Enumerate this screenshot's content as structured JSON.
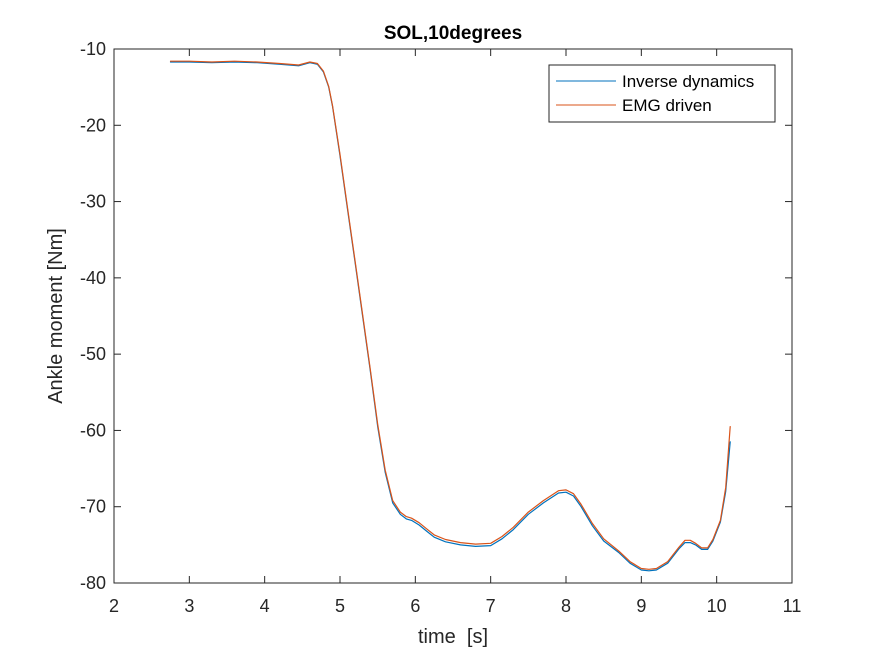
{
  "chart_data": {
    "type": "line",
    "title": "SOL,10degrees",
    "xlabel": "time  [s]",
    "ylabel": "Ankle moment [Nm]",
    "xlim": [
      2,
      11
    ],
    "ylim": [
      -80,
      -10
    ],
    "xticks": [
      2,
      3,
      4,
      5,
      6,
      7,
      8,
      9,
      10,
      11
    ],
    "yticks": [
      -10,
      -20,
      -30,
      -40,
      -50,
      -60,
      -70,
      -80
    ],
    "grid": false,
    "legend_location": "top-right",
    "series": [
      {
        "name": "Inverse dynamics",
        "color": "#0072BD",
        "x": [
          2.75,
          3.0,
          3.3,
          3.6,
          3.9,
          4.2,
          4.45,
          4.6,
          4.7,
          4.78,
          4.85,
          4.9,
          5.0,
          5.1,
          5.2,
          5.3,
          5.4,
          5.5,
          5.6,
          5.7,
          5.8,
          5.88,
          5.95,
          6.05,
          6.15,
          6.25,
          6.4,
          6.6,
          6.8,
          7.0,
          7.15,
          7.3,
          7.5,
          7.7,
          7.9,
          8.0,
          8.1,
          8.2,
          8.35,
          8.5,
          8.7,
          8.85,
          9.0,
          9.1,
          9.2,
          9.35,
          9.5,
          9.58,
          9.65,
          9.72,
          9.8,
          9.88,
          9.95,
          10.05,
          10.12,
          10.18
        ],
        "values": [
          -11.7,
          -11.7,
          -11.8,
          -11.7,
          -11.8,
          -12.0,
          -12.2,
          -11.8,
          -12.0,
          -13.0,
          -15.0,
          -17.5,
          -24.0,
          -31.0,
          -38.0,
          -45.0,
          -52.0,
          -59.5,
          -65.5,
          -69.5,
          -71.0,
          -71.6,
          -71.8,
          -72.4,
          -73.2,
          -74.0,
          -74.6,
          -75.0,
          -75.2,
          -75.1,
          -74.2,
          -73.0,
          -71.0,
          -69.5,
          -68.2,
          -68.1,
          -68.6,
          -70.0,
          -72.5,
          -74.5,
          -76.0,
          -77.4,
          -78.3,
          -78.4,
          -78.3,
          -77.4,
          -75.5,
          -74.7,
          -74.7,
          -75.0,
          -75.6,
          -75.6,
          -74.5,
          -72.0,
          -68.0,
          -61.5
        ]
      },
      {
        "name": "EMG driven",
        "color": "#D95319",
        "x": [
          2.75,
          3.0,
          3.3,
          3.6,
          3.9,
          4.2,
          4.45,
          4.6,
          4.7,
          4.78,
          4.85,
          4.9,
          5.0,
          5.1,
          5.2,
          5.3,
          5.4,
          5.5,
          5.6,
          5.7,
          5.8,
          5.88,
          5.95,
          6.05,
          6.15,
          6.25,
          6.4,
          6.6,
          6.8,
          7.0,
          7.15,
          7.3,
          7.5,
          7.7,
          7.9,
          8.0,
          8.1,
          8.2,
          8.35,
          8.5,
          8.7,
          8.85,
          9.0,
          9.1,
          9.2,
          9.35,
          9.5,
          9.58,
          9.65,
          9.72,
          9.8,
          9.88,
          9.95,
          10.05,
          10.12,
          10.18
        ],
        "values": [
          -11.6,
          -11.6,
          -11.7,
          -11.6,
          -11.7,
          -11.9,
          -12.1,
          -11.7,
          -11.9,
          -12.9,
          -14.9,
          -17.4,
          -23.8,
          -30.8,
          -37.8,
          -44.8,
          -51.8,
          -59.2,
          -65.2,
          -69.2,
          -70.7,
          -71.3,
          -71.5,
          -72.1,
          -72.9,
          -73.7,
          -74.3,
          -74.7,
          -74.9,
          -74.8,
          -73.9,
          -72.7,
          -70.7,
          -69.2,
          -67.9,
          -67.8,
          -68.3,
          -69.7,
          -72.2,
          -74.2,
          -75.8,
          -77.2,
          -78.1,
          -78.2,
          -78.1,
          -77.2,
          -75.3,
          -74.4,
          -74.4,
          -74.8,
          -75.4,
          -75.4,
          -74.3,
          -71.8,
          -67.5,
          -59.5
        ]
      }
    ]
  }
}
